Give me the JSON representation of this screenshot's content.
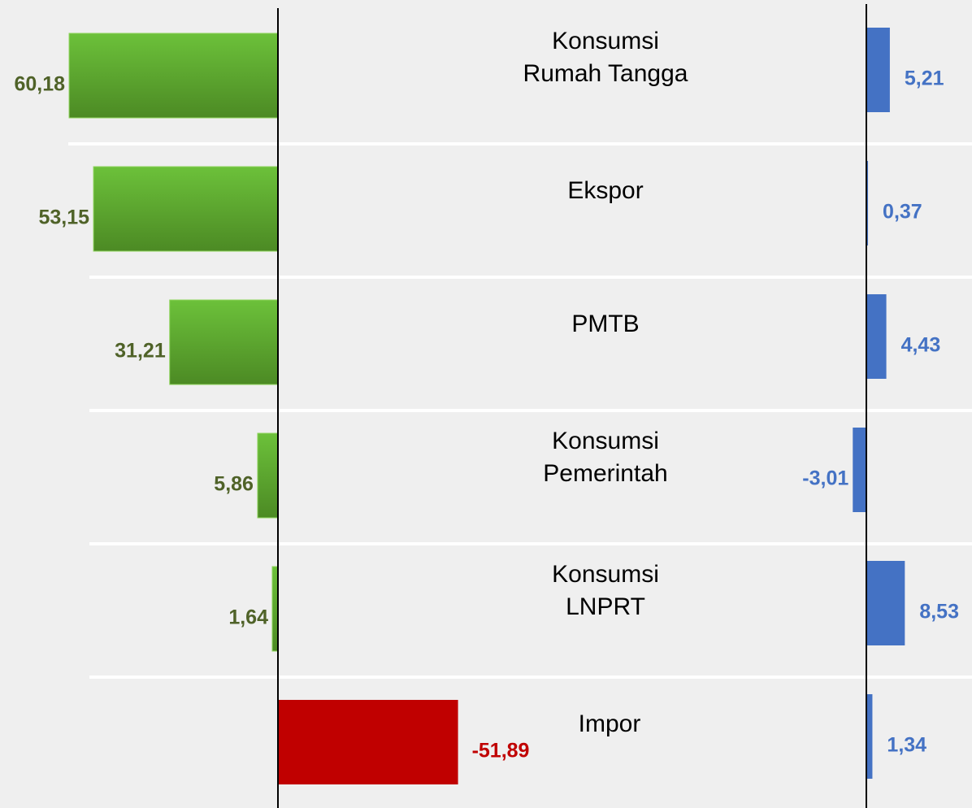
{
  "chart_data": {
    "type": "bar",
    "orientation": "horizontal",
    "categories": [
      "Konsumsi\nRumah Tangga",
      "Ekspor",
      "PMTB",
      "Konsumsi\nPemerintah",
      "Konsumsi\nLNPRT",
      "Impor"
    ],
    "series": [
      {
        "color": "#5fae2e",
        "negative_color": "#c00000",
        "label_color": "#4f6228",
        "values": [
          60.18,
          53.15,
          31.21,
          5.86,
          1.64,
          -51.89
        ],
        "value_labels": [
          "60,18",
          "53,15",
          "31,21",
          "5,86",
          "1,64",
          "-51,89"
        ]
      },
      {
        "color": "#4472c4",
        "negative_color": "#4472c4",
        "label_color": "#4472c4",
        "values": [
          5.21,
          0.37,
          4.43,
          -3.01,
          8.53,
          1.34
        ],
        "value_labels": [
          "5,21",
          "0,37",
          "4,43",
          "-3,01",
          "8,53",
          "1,34"
        ]
      }
    ]
  }
}
